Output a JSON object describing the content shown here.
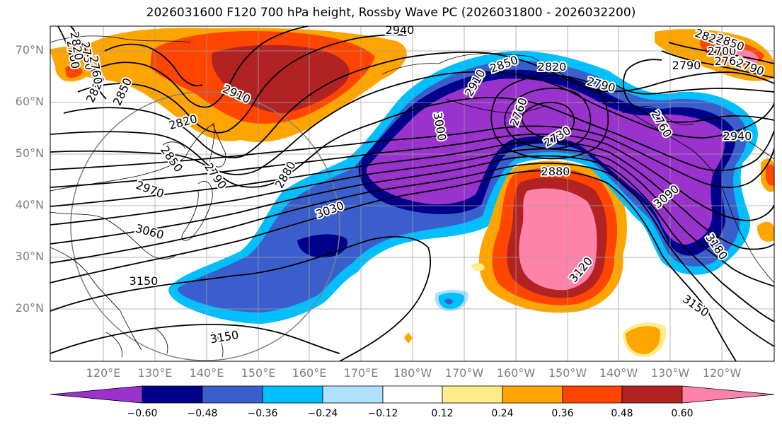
{
  "title": "2026031600 F120 700 hPa height, Rossby Wave PC (2026031800 - 2026032200)",
  "lat_labels": [
    "70°N",
    "60°N",
    "50°N",
    "40°N",
    "30°N",
    "20°N"
  ],
  "lon_labels": [
    "120°E",
    "130°E",
    "140°E",
    "150°E",
    "160°E",
    "170°E",
    "180°W",
    "170°W",
    "160°W",
    "150°W",
    "140°W",
    "130°W",
    "120°W"
  ],
  "contour_labels": [
    "2940",
    "2700",
    "2760",
    "2790",
    "2820",
    "2850",
    "2910",
    "2850",
    "2820",
    "2790",
    "3000",
    "2760",
    "2730",
    "2880",
    "3030",
    "3090",
    "3180",
    "3120",
    "3150",
    "3150",
    "3150",
    "2970",
    "3060",
    "2880",
    "2820",
    "2850",
    "2790",
    "2760",
    "2940",
    "2730",
    "2760",
    "2790",
    "2820",
    "2850",
    "2910",
    "2760",
    "2820"
  ],
  "colorbar": {
    "ticks": [
      "−0.60",
      "−0.48",
      "−0.36",
      "−0.24",
      "−0.12",
      "0.12",
      "0.24",
      "0.36",
      "0.48",
      "0.60"
    ],
    "colors": [
      "#9a32cd",
      "#00008b",
      "#3a5fcd",
      "#00bfff",
      "#b0e2ff",
      "#ffffff",
      "#ffec8b",
      "#ffa500",
      "#ff4500",
      "#b22222",
      "#ff82ab"
    ]
  }
}
